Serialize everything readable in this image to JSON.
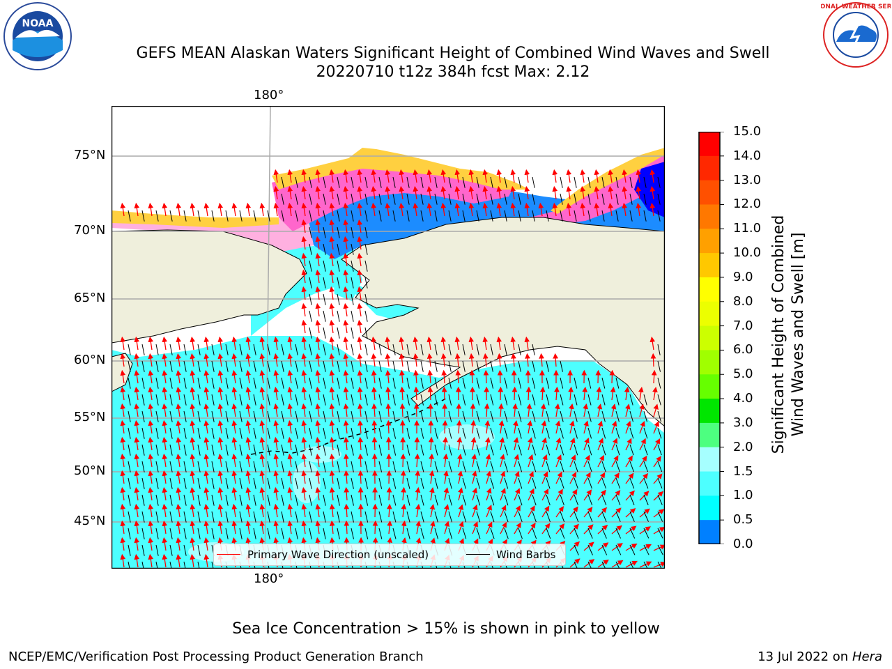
{
  "title_line1": "GEFS MEAN Alaskan Waters Significant Height of Combined Wind Waves and Swell",
  "title_line2": "20220710 t12z 384h fcst   Max: 2.12",
  "lat_ticks": [
    "75°N",
    "70°N",
    "65°N",
    "60°N",
    "55°N",
    "50°N",
    "45°N"
  ],
  "lon_tick_top": "180°",
  "lon_tick_bottom": "180°",
  "colorbar": {
    "label_line1": "Significant Height of Combined",
    "label_line2": "Wind Waves and Swell [m]",
    "ticks": [
      "15.0",
      "14.0",
      "13.0",
      "12.0",
      "11.0",
      "10.0",
      "9.0",
      "8.0",
      "7.0",
      "6.0",
      "5.0",
      "4.0",
      "3.0",
      "2.0",
      "1.5",
      "1.0",
      "0.5",
      "0.0"
    ],
    "colors": [
      "#ff0000",
      "#ff2800",
      "#ff5000",
      "#ff7800",
      "#ffa000",
      "#ffc800",
      "#ffff00",
      "#ecff00",
      "#ccff00",
      "#a0ff00",
      "#66ff00",
      "#00e600",
      "#4dff80",
      "#a6ffff",
      "#4dffff",
      "#00ffff",
      "#0080ff",
      "#0000ff"
    ]
  },
  "legend": {
    "wave_label": "Primary Wave Direction (unscaled)",
    "wind_label": "Wind Barbs",
    "wave_color": "#ff0000",
    "wind_color": "#000000"
  },
  "ice_note": "Sea Ice Concentration > 15% is shown in pink to yellow",
  "footer_left": "NCEP/EMC/Verification Post Processing Product Generation Branch",
  "footer_right_date": "13 Jul 2022 on ",
  "footer_right_host": "Hera",
  "logos": {
    "left": "NOAA",
    "right_top": "NATIONAL WEATHER SERVICE"
  },
  "colors": {
    "land": "#efefdc",
    "ocean": "#4dffff",
    "ice_pink": "#ff66cc",
    "ice_yellow": "#ffe040"
  }
}
